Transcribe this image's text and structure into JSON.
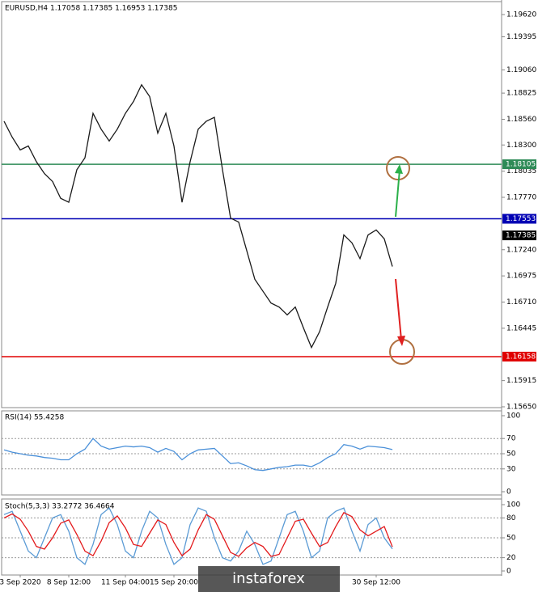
{
  "chart_data": [
    {
      "type": "line",
      "title": "EURUSD,H4  1.17058 1.17385 1.16953 1.17385",
      "ylim": [
        1.1565,
        1.1962
      ],
      "yticks": [
        {
          "value": 1.1962,
          "label": "1.19620"
        },
        1.19395,
        {
          "value": 1.1906,
          "label": "1.19060"
        },
        1.18825,
        {
          "value": 1.1856,
          "label": "1.18560"
        },
        {
          "value": 1.183,
          "label": "1.18300"
        },
        1.18035,
        {
          "value": 1.1777,
          "label": "1.17770"
        },
        {
          "value": 1.1724,
          "label": "1.17240"
        },
        1.16975,
        {
          "value": 1.1671,
          "label": "1.16710"
        },
        1.16445,
        1.15915,
        {
          "value": 1.1565,
          "label": "1.15650"
        }
      ],
      "hlines": [
        {
          "value": 1.18105,
          "color": "#2e8b57"
        },
        {
          "value": 1.17553,
          "color": "#0000b4"
        },
        {
          "value": 1.16158,
          "color": "#e00000"
        }
      ],
      "last_price": 1.17385,
      "series": [
        {
          "name": "EURUSD",
          "color": "#1a1a1a",
          "values": [
            1.1854,
            1.1838,
            1.1825,
            1.1829,
            1.1813,
            1.1801,
            1.1793,
            1.1776,
            1.1772,
            1.1805,
            1.1817,
            1.1862,
            1.1846,
            1.1834,
            1.1846,
            1.1862,
            1.1874,
            1.1891,
            1.1879,
            1.1842,
            1.1862,
            1.1829,
            1.1772,
            1.1813,
            1.1846,
            1.1854,
            1.1858,
            1.1805,
            1.1756,
            1.1752,
            1.1723,
            1.1694,
            1.1682,
            1.167,
            1.1666,
            1.1658,
            1.1666,
            1.1645,
            1.1625,
            1.1641,
            1.1666,
            1.169,
            1.1739,
            1.1731,
            1.1715,
            1.1739,
            1.1744,
            1.1735,
            1.1707
          ]
        }
      ]
    },
    {
      "type": "line",
      "title": "RSI(14) 55.4258",
      "ylim": [
        0,
        100
      ],
      "yticks": [
        100,
        70,
        50,
        30,
        0
      ],
      "grid": true,
      "series": [
        {
          "name": "RSI",
          "color": "#4a90d9",
          "values": [
            55,
            52,
            50,
            48,
            47,
            45,
            44,
            42,
            42,
            50,
            56,
            70,
            60,
            56,
            58,
            60,
            59,
            60,
            58,
            52,
            57,
            53,
            42,
            50,
            55,
            56,
            57,
            47,
            37,
            38,
            34,
            29,
            28,
            30,
            32,
            33,
            35,
            35,
            33,
            38,
            45,
            50,
            62,
            60,
            56,
            60,
            59,
            58,
            55.4258
          ]
        }
      ]
    },
    {
      "type": "line",
      "title": "Stoch(5,3,3) 33.2772 36.4664",
      "ylim": [
        0,
        100
      ],
      "yticks": [
        100,
        80,
        50,
        20,
        0
      ],
      "grid": true,
      "categories": [
        null,
        null,
        "3 Sep 2020",
        null,
        null,
        null,
        null,
        null,
        "8 Sep 12:00",
        null,
        null,
        null,
        null,
        null,
        null,
        "11 Sep 04:00",
        null,
        null,
        null,
        null,
        null,
        "15 Sep 20:00",
        null,
        null,
        null,
        null,
        null,
        null,
        null,
        null,
        null,
        null,
        null,
        null,
        null,
        null,
        null,
        null,
        null,
        null,
        null,
        null,
        null,
        null,
        null,
        null,
        "30 Sep 12:00",
        null,
        null
      ],
      "series": [
        {
          "name": "%K",
          "color": "#5b9bd5",
          "values": [
            85,
            90,
            60,
            30,
            20,
            50,
            80,
            85,
            60,
            20,
            10,
            40,
            85,
            95,
            70,
            30,
            20,
            60,
            90,
            80,
            40,
            10,
            20,
            70,
            95,
            90,
            50,
            20,
            15,
            30,
            60,
            40,
            10,
            15,
            50,
            85,
            90,
            60,
            20,
            30,
            80,
            90,
            95,
            60,
            30,
            70,
            80,
            50,
            33.2772
          ]
        },
        {
          "name": "%D",
          "color": "#e31a1c",
          "values": [
            80,
            86,
            78,
            60,
            37,
            33,
            50,
            72,
            77,
            55,
            30,
            23,
            45,
            73,
            83,
            65,
            40,
            37,
            57,
            77,
            70,
            43,
            23,
            33,
            62,
            85,
            78,
            53,
            28,
            22,
            35,
            43,
            37,
            22,
            25,
            50,
            75,
            78,
            57,
            37,
            43,
            67,
            88,
            82,
            62,
            53,
            60,
            67,
            36.4664
          ]
        }
      ]
    }
  ],
  "watermark": "instaforex"
}
